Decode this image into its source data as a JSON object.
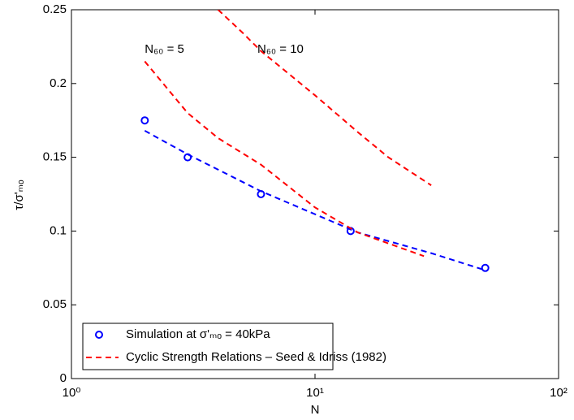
{
  "chart_data": {
    "type": "scatter-line",
    "x_label": "N",
    "y_label": "τ/σ'ₘₒ",
    "xscale": "log",
    "xlim": [
      1,
      100
    ],
    "xticks": [
      {
        "value": 1,
        "label": "10⁰"
      },
      {
        "value": 10,
        "label": "10¹"
      },
      {
        "value": 100,
        "label": "10²"
      }
    ],
    "ylim": [
      0,
      0.25
    ],
    "yticks": [
      0,
      0.05,
      0.1,
      0.15,
      0.2,
      0.25
    ],
    "grid": false,
    "legend": "lower left",
    "annotations": [
      {
        "text": "N₆₀ = 5",
        "x": 2,
        "y": 0.223
      },
      {
        "text": "N₆₀ = 10",
        "x": 5.8,
        "y": 0.223
      }
    ],
    "series": [
      {
        "name": "Simulation at σ'ₘₒ = 40kPa",
        "color": "#0000ff",
        "marker": "circle",
        "x": [
          2,
          3,
          6,
          14,
          50
        ],
        "values": [
          0.175,
          0.15,
          0.125,
          0.1,
          0.075
        ]
      },
      {
        "color": "#0000ff",
        "line": "dashed",
        "x": [
          2,
          3,
          6,
          15,
          30,
          51
        ],
        "values": [
          0.168,
          0.152,
          0.127,
          0.099,
          0.085,
          0.073
        ]
      },
      {
        "name": "Cyclic Strength Relations – Seed & Idriss (1982)",
        "color": "#ff0000",
        "line": "dashed",
        "x": [
          2,
          3,
          4,
          6,
          10,
          15,
          28
        ],
        "values": [
          0.215,
          0.18,
          0.163,
          0.145,
          0.116,
          0.099,
          0.083
        ]
      },
      {
        "color": "#ff0000",
        "line": "dashed",
        "x": [
          4,
          5,
          6,
          10,
          15,
          20,
          30
        ],
        "values": [
          0.25,
          0.235,
          0.222,
          0.192,
          0.167,
          0.15,
          0.131
        ]
      }
    ]
  }
}
